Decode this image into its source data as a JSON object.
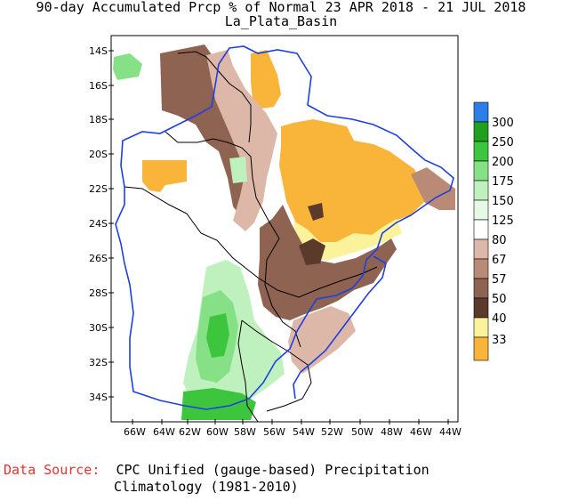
{
  "title": "90-day Accumulated Prcp % of Normal 23 APR 2018 - 21 JUL 2018",
  "subtitle": "La_Plata_Basin",
  "lat_labels": [
    "14S",
    "16S",
    "18S",
    "20S",
    "22S",
    "24S",
    "26S",
    "28S",
    "30S",
    "32S",
    "34S"
  ],
  "lon_labels": [
    "66W",
    "64W",
    "62W",
    "60W",
    "58W",
    "56W",
    "54W",
    "52W",
    "50W",
    "48W",
    "46W",
    "44W"
  ],
  "legend": {
    "labels": [
      "300",
      "250",
      "200",
      "175",
      "150",
      "125",
      "80",
      "67",
      "57",
      "50",
      "40",
      "33"
    ],
    "colors": {
      "c300": "#2b7fe6",
      "c250": "#1fa01f",
      "c200": "#3dc63d",
      "c175": "#86e086",
      "c150": "#bff1bf",
      "c125": "#e6f8e6",
      "c80": "#ffffff",
      "c67": "#ddb8a8",
      "c57": "#b98b76",
      "c50": "#8e6352",
      "c40": "#5c3a2b",
      "c33": "#fbf39b",
      "cbelow": "#f8b53a"
    }
  },
  "source": {
    "prefix": "Data Source:",
    "line1": "CPC Unified (gauge-based) Precipitation",
    "line2": "Climatology (1981-2010)"
  }
}
